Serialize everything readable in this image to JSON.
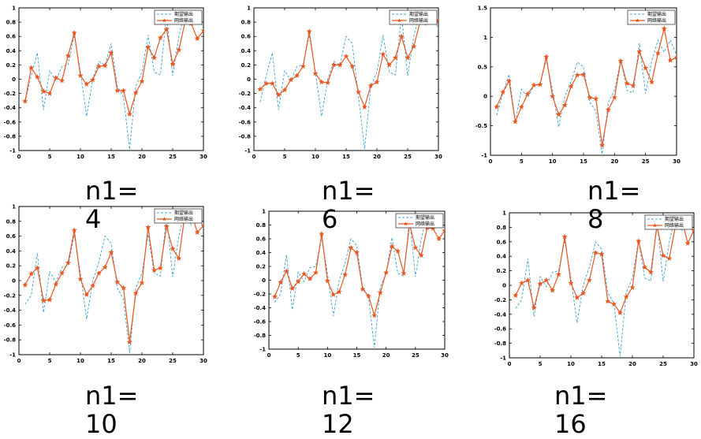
{
  "legend": {
    "entries": [
      "期望输出",
      "网络输出"
    ]
  },
  "colors": {
    "expected": "#3aa0d8",
    "network": "#e8571f",
    "frame": "#000000"
  },
  "chart_data": [
    {
      "type": "line",
      "caption": "n1=4",
      "xlim": [
        0,
        30
      ],
      "ylim": [
        -1,
        1
      ],
      "xticks": [
        0,
        5,
        10,
        15,
        20,
        25,
        30
      ],
      "yticks": [
        -1,
        -0.8,
        -0.6,
        -0.4,
        -0.2,
        0,
        0.2,
        0.4,
        0.6,
        0.8,
        1
      ],
      "ytick_labels": [
        "-1",
        "-0.8",
        "-0.6",
        "-0.4",
        "-0.2",
        "0",
        "0.2",
        "0.4",
        "0.6",
        "0.8",
        "1"
      ],
      "series": [
        {
          "name": "期望输出",
          "style": "dashed",
          "x": [
            1,
            2,
            3,
            4,
            5,
            6,
            7,
            8,
            9,
            10,
            11,
            12,
            13,
            14,
            15,
            16,
            17,
            18,
            19,
            20,
            21,
            22,
            23,
            24,
            25,
            26,
            27,
            28,
            29,
            30
          ],
          "y": [
            -0.32,
            0.05,
            0.37,
            -0.43,
            0.12,
            -0.02,
            0.18,
            0.2,
            0.62,
            0.1,
            -0.52,
            0.0,
            0.25,
            0.2,
            0.5,
            -0.1,
            -0.25,
            -0.98,
            -0.1,
            0.1,
            0.62,
            0.1,
            0.06,
            0.9,
            0.05,
            0.6,
            0.95,
            0.75,
            0.95,
            0.7
          ]
        },
        {
          "name": "网络输出",
          "style": "solid-star",
          "x": [
            1,
            2,
            3,
            4,
            5,
            6,
            7,
            8,
            9,
            10,
            11,
            12,
            13,
            14,
            15,
            16,
            17,
            18,
            19,
            20,
            21,
            22,
            23,
            24,
            25,
            26,
            27,
            28,
            29,
            30
          ],
          "y": [
            -0.31,
            0.16,
            0.03,
            -0.17,
            -0.2,
            0.02,
            -0.02,
            0.33,
            0.65,
            0.05,
            -0.07,
            -0.01,
            0.18,
            0.19,
            0.37,
            -0.16,
            -0.16,
            -0.49,
            -0.19,
            -0.03,
            0.45,
            0.3,
            0.58,
            0.7,
            0.21,
            0.41,
            0.8,
            0.78,
            0.57,
            0.68
          ]
        }
      ]
    },
    {
      "type": "line",
      "caption": "n1=6",
      "xlim": [
        0,
        30
      ],
      "ylim": [
        -1,
        1
      ],
      "xticks": [
        0,
        5,
        10,
        15,
        20,
        25,
        30
      ],
      "yticks": [
        -1,
        -0.8,
        -0.6,
        -0.4,
        -0.2,
        0,
        0.2,
        0.4,
        0.6,
        0.8,
        1
      ],
      "ytick_labels": [
        "-1",
        "-0.8",
        "-0.6",
        "-0.4",
        "-0.2",
        "0",
        "0.2",
        "0.4",
        "0.6",
        "0.8",
        "1"
      ],
      "series": [
        {
          "name": "期望输出",
          "style": "dashed",
          "x": [
            1,
            2,
            3,
            4,
            5,
            6,
            7,
            8,
            9,
            10,
            11,
            12,
            13,
            14,
            15,
            16,
            17,
            18,
            19,
            20,
            21,
            22,
            23,
            24,
            25,
            26,
            27,
            28,
            29,
            30
          ],
          "y": [
            -0.32,
            0.05,
            0.37,
            -0.43,
            0.12,
            -0.02,
            0.18,
            0.2,
            0.62,
            0.1,
            -0.52,
            0.0,
            0.25,
            0.2,
            0.6,
            0.5,
            -0.25,
            -0.98,
            -0.1,
            0.1,
            0.62,
            0.1,
            0.06,
            0.9,
            0.05,
            0.6,
            0.95,
            0.75,
            0.95,
            0.7
          ]
        },
        {
          "name": "网络输出",
          "style": "solid-star",
          "x": [
            1,
            2,
            3,
            4,
            5,
            6,
            7,
            8,
            9,
            10,
            11,
            12,
            13,
            14,
            15,
            16,
            17,
            18,
            19,
            20,
            21,
            22,
            23,
            24,
            25,
            26,
            27,
            28,
            29,
            30
          ],
          "y": [
            -0.14,
            -0.06,
            -0.06,
            -0.22,
            -0.15,
            -0.01,
            0.05,
            0.18,
            0.67,
            0.08,
            -0.04,
            -0.05,
            0.2,
            0.2,
            0.32,
            0.18,
            -0.18,
            -0.39,
            -0.09,
            -0.04,
            0.35,
            0.2,
            0.3,
            0.6,
            0.3,
            0.46,
            0.8,
            0.9,
            0.88,
            0.82
          ]
        }
      ]
    },
    {
      "type": "line",
      "caption": "n1=8",
      "xlim": [
        0,
        30
      ],
      "ylim": [
        -1,
        1.5
      ],
      "xticks": [
        0,
        5,
        10,
        15,
        20,
        25,
        30
      ],
      "yticks": [
        -1,
        -0.5,
        0,
        0.5,
        1,
        1.5
      ],
      "ytick_labels": [
        "-1",
        "-0.5",
        "0",
        "0.5",
        "1",
        "1.5"
      ],
      "series": [
        {
          "name": "期望输出",
          "style": "dashed",
          "x": [
            1,
            2,
            3,
            4,
            5,
            6,
            7,
            8,
            9,
            10,
            11,
            12,
            13,
            14,
            15,
            16,
            17,
            18,
            19,
            20,
            21,
            22,
            23,
            24,
            25,
            26,
            27,
            28,
            29,
            30
          ],
          "y": [
            -0.32,
            0.05,
            0.37,
            -0.43,
            0.12,
            -0.02,
            0.18,
            0.2,
            0.62,
            0.1,
            -0.52,
            0.0,
            0.25,
            0.58,
            0.5,
            -0.1,
            -0.25,
            -0.98,
            -0.1,
            0.1,
            0.62,
            0.1,
            0.06,
            0.9,
            0.05,
            0.6,
            0.95,
            0.75,
            0.95,
            0.7
          ]
        },
        {
          "name": "网络输出",
          "style": "solid-star",
          "x": [
            1,
            2,
            3,
            4,
            5,
            6,
            7,
            8,
            9,
            10,
            11,
            12,
            13,
            14,
            15,
            16,
            17,
            18,
            19,
            20,
            21,
            22,
            23,
            24,
            25,
            26,
            27,
            28,
            29,
            30
          ],
          "y": [
            -0.18,
            0.07,
            0.26,
            -0.43,
            -0.18,
            0.04,
            0.19,
            0.2,
            0.67,
            0.0,
            -0.31,
            -0.15,
            0.17,
            0.36,
            0.37,
            -0.02,
            -0.04,
            -0.83,
            -0.23,
            -0.02,
            0.6,
            0.22,
            0.18,
            0.76,
            0.48,
            0.24,
            0.73,
            1.15,
            0.61,
            0.66
          ]
        }
      ]
    },
    {
      "type": "line",
      "caption": "n1=10",
      "xlim": [
        0,
        30
      ],
      "ylim": [
        -1,
        1
      ],
      "xticks": [
        0,
        5,
        10,
        15,
        20,
        25,
        30
      ],
      "yticks": [
        -1,
        -0.8,
        -0.6,
        -0.4,
        -0.2,
        0,
        0.2,
        0.4,
        0.6,
        0.8,
        1
      ],
      "ytick_labels": [
        "-1",
        "-0.8",
        "-0.6",
        "-0.4",
        "-0.2",
        "0",
        "0.2",
        "0.4",
        "0.6",
        "0.8",
        "1"
      ],
      "series": [
        {
          "name": "期望输出",
          "style": "dashed",
          "x": [
            1,
            2,
            3,
            4,
            5,
            6,
            7,
            8,
            9,
            10,
            11,
            12,
            13,
            14,
            15,
            16,
            17,
            18,
            19,
            20,
            21,
            22,
            23,
            24,
            25,
            26,
            27,
            28,
            29,
            30
          ],
          "y": [
            -0.32,
            -0.2,
            0.37,
            -0.43,
            0.12,
            -0.02,
            0.18,
            0.2,
            0.62,
            0.1,
            -0.52,
            0.0,
            0.25,
            0.6,
            0.5,
            -0.1,
            -0.25,
            -0.98,
            -0.1,
            0.1,
            0.62,
            0.1,
            0.06,
            0.9,
            0.05,
            0.6,
            0.95,
            0.75,
            0.95,
            0.7
          ]
        },
        {
          "name": "网络输出",
          "style": "solid-star",
          "x": [
            1,
            2,
            3,
            4,
            5,
            6,
            7,
            8,
            9,
            10,
            11,
            12,
            13,
            14,
            15,
            16,
            17,
            18,
            19,
            20,
            21,
            22,
            23,
            24,
            25,
            26,
            27,
            28,
            29,
            30
          ],
          "y": [
            -0.06,
            0.09,
            0.17,
            -0.27,
            -0.26,
            -0.05,
            0.1,
            0.24,
            0.68,
            0.02,
            -0.19,
            -0.07,
            0.1,
            0.18,
            0.38,
            -0.02,
            -0.1,
            -0.83,
            -0.17,
            -0.03,
            0.72,
            0.14,
            0.17,
            0.73,
            0.43,
            0.3,
            0.9,
            0.92,
            0.65,
            0.74
          ]
        }
      ]
    },
    {
      "type": "line",
      "caption": "n1=12",
      "xlim": [
        0,
        30
      ],
      "ylim": [
        -1,
        1
      ],
      "xticks": [
        0,
        5,
        10,
        15,
        20,
        25,
        30
      ],
      "yticks": [
        -1,
        -0.8,
        -0.6,
        -0.4,
        -0.2,
        0,
        0.2,
        0.4,
        0.6,
        0.8,
        1
      ],
      "ytick_labels": [
        "-1",
        "-0.8",
        "-0.6",
        "-0.4",
        "-0.2",
        "0",
        "0.2",
        "0.4",
        "0.6",
        "0.8",
        "1"
      ],
      "series": [
        {
          "name": "期望输出",
          "style": "dashed",
          "x": [
            1,
            2,
            3,
            4,
            5,
            6,
            7,
            8,
            9,
            10,
            11,
            12,
            13,
            14,
            15,
            16,
            17,
            18,
            19,
            20,
            21,
            22,
            23,
            24,
            25,
            26,
            27,
            28,
            29,
            30
          ],
          "y": [
            -0.32,
            -0.2,
            0.37,
            -0.43,
            0.12,
            -0.02,
            0.18,
            0.2,
            0.62,
            0.1,
            -0.52,
            0.0,
            0.25,
            0.6,
            0.5,
            -0.1,
            -0.25,
            -0.98,
            -0.1,
            0.1,
            0.62,
            0.1,
            0.06,
            0.9,
            0.05,
            0.6,
            0.95,
            0.75,
            0.95,
            0.7
          ]
        },
        {
          "name": "网络输出",
          "style": "solid-star",
          "x": [
            1,
            2,
            3,
            4,
            5,
            6,
            7,
            8,
            9,
            10,
            11,
            12,
            13,
            14,
            15,
            16,
            17,
            18,
            19,
            20,
            21,
            22,
            23,
            24,
            25,
            26,
            27,
            28,
            29,
            30
          ],
          "y": [
            -0.24,
            -0.03,
            0.13,
            -0.12,
            -0.02,
            0.09,
            0.02,
            0.11,
            0.67,
            -0.01,
            -0.21,
            -0.17,
            0.08,
            0.47,
            0.4,
            -0.13,
            -0.23,
            -0.51,
            -0.18,
            0.11,
            0.49,
            0.42,
            0.1,
            0.81,
            0.47,
            0.36,
            0.76,
            0.75,
            0.6,
            0.72
          ]
        }
      ]
    },
    {
      "type": "line",
      "caption": "n1=16",
      "xlim": [
        0,
        30
      ],
      "ylim": [
        -1,
        1
      ],
      "xticks": [
        0,
        5,
        10,
        15,
        20,
        25,
        30
      ],
      "yticks": [
        -1,
        -0.8,
        -0.6,
        -0.4,
        -0.2,
        0,
        0.2,
        0.4,
        0.6,
        0.8,
        1
      ],
      "ytick_labels": [
        "-1",
        "-0.8",
        "-0.6",
        "-0.4",
        "-0.2",
        "0",
        "0.2",
        "0.4",
        "0.6",
        "0.8",
        "1"
      ],
      "series": [
        {
          "name": "期望输出",
          "style": "dashed",
          "x": [
            1,
            2,
            3,
            4,
            5,
            6,
            7,
            8,
            9,
            10,
            11,
            12,
            13,
            14,
            15,
            16,
            17,
            18,
            19,
            20,
            21,
            22,
            23,
            24,
            25,
            26,
            27,
            28,
            29,
            30
          ],
          "y": [
            -0.32,
            -0.2,
            0.37,
            -0.43,
            0.12,
            -0.02,
            0.18,
            0.2,
            0.62,
            0.1,
            -0.52,
            0.0,
            0.25,
            0.6,
            0.5,
            -0.1,
            -0.25,
            -0.98,
            -0.1,
            0.1,
            0.62,
            0.1,
            0.06,
            0.9,
            0.05,
            0.6,
            0.95,
            0.75,
            0.95,
            0.7
          ]
        },
        {
          "name": "网络输出",
          "style": "solid-star",
          "x": [
            1,
            2,
            3,
            4,
            5,
            6,
            7,
            8,
            9,
            10,
            11,
            12,
            13,
            14,
            15,
            16,
            17,
            18,
            19,
            20,
            21,
            22,
            23,
            24,
            25,
            26,
            27,
            28,
            29,
            30
          ],
          "y": [
            -0.14,
            0.03,
            0.07,
            -0.31,
            0.02,
            0.07,
            -0.07,
            0.15,
            0.67,
            0.03,
            -0.17,
            -0.11,
            0.07,
            0.45,
            0.43,
            -0.22,
            -0.26,
            -0.38,
            -0.16,
            -0.03,
            0.61,
            0.25,
            0.18,
            0.82,
            0.41,
            0.37,
            0.82,
            0.92,
            0.58,
            0.76
          ]
        }
      ]
    }
  ]
}
